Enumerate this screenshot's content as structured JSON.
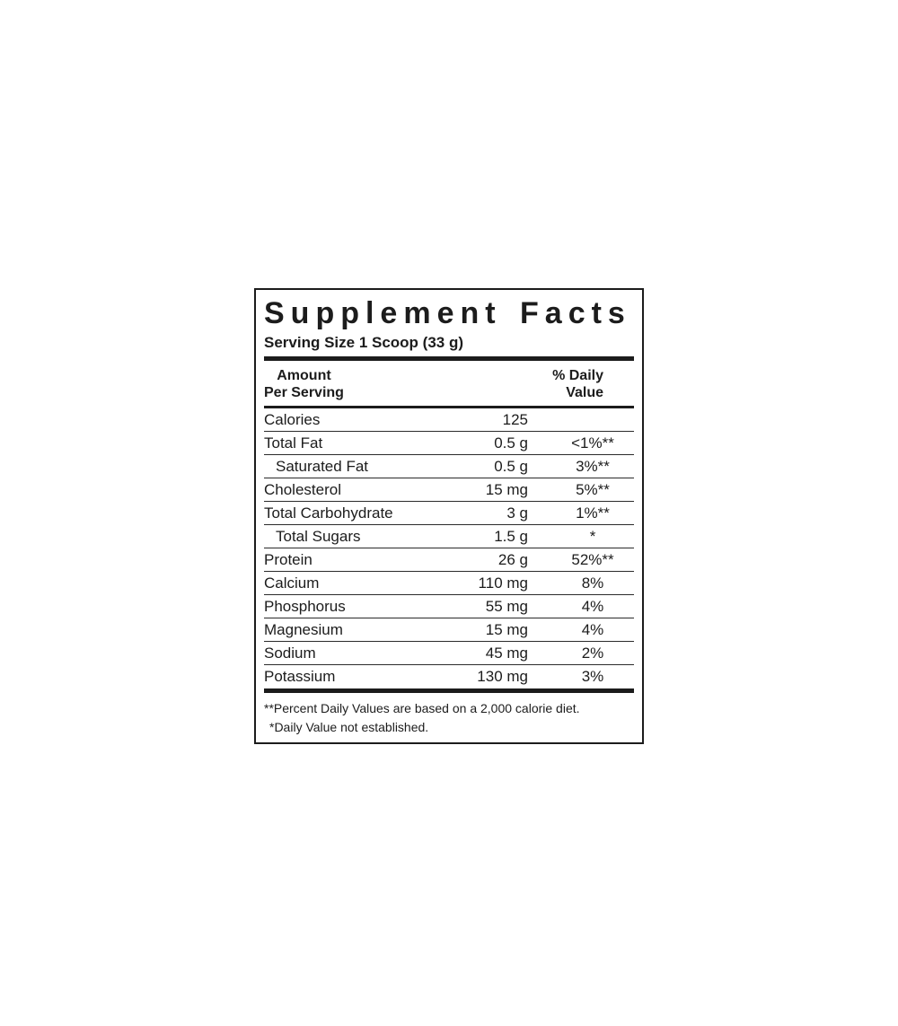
{
  "label": {
    "title": "Supplement Facts",
    "serving_size": "Serving Size 1 Scoop (33 g)",
    "columns": {
      "amount_line1": "Amount",
      "amount_line2": "Per Serving",
      "dv_line1": "% Daily",
      "dv_line2": "Value"
    },
    "rows": [
      {
        "name": "Calories",
        "amount": "125",
        "dv": "",
        "indent": false
      },
      {
        "name": "Total Fat",
        "amount": "0.5 g",
        "dv": "<1%**",
        "indent": false
      },
      {
        "name": "Saturated Fat",
        "amount": "0.5 g",
        "dv": "3%**",
        "indent": true
      },
      {
        "name": "Cholesterol",
        "amount": "15 mg",
        "dv": "5%**",
        "indent": false
      },
      {
        "name": "Total Carbohydrate",
        "amount": "3 g",
        "dv": "1%**",
        "indent": false
      },
      {
        "name": "Total Sugars",
        "amount": "1.5 g",
        "dv": "*",
        "indent": true
      },
      {
        "name": "Protein",
        "amount": "26 g",
        "dv": "52%**",
        "indent": false
      },
      {
        "name": "Calcium",
        "amount": "110 mg",
        "dv": "8%",
        "indent": false
      },
      {
        "name": "Phosphorus",
        "amount": "55 mg",
        "dv": "4%",
        "indent": false
      },
      {
        "name": "Magnesium",
        "amount": "15 mg",
        "dv": "4%",
        "indent": false
      },
      {
        "name": "Sodium",
        "amount": "45 mg",
        "dv": "2%",
        "indent": false
      },
      {
        "name": "Potassium",
        "amount": "130 mg",
        "dv": "3%",
        "indent": false
      }
    ],
    "footnotes": [
      "**Percent Daily Values are based on a 2,000 calorie diet.",
      "*Daily Value not established."
    ]
  },
  "colors": {
    "ink": "#1c1c1c",
    "background": "#ffffff"
  }
}
